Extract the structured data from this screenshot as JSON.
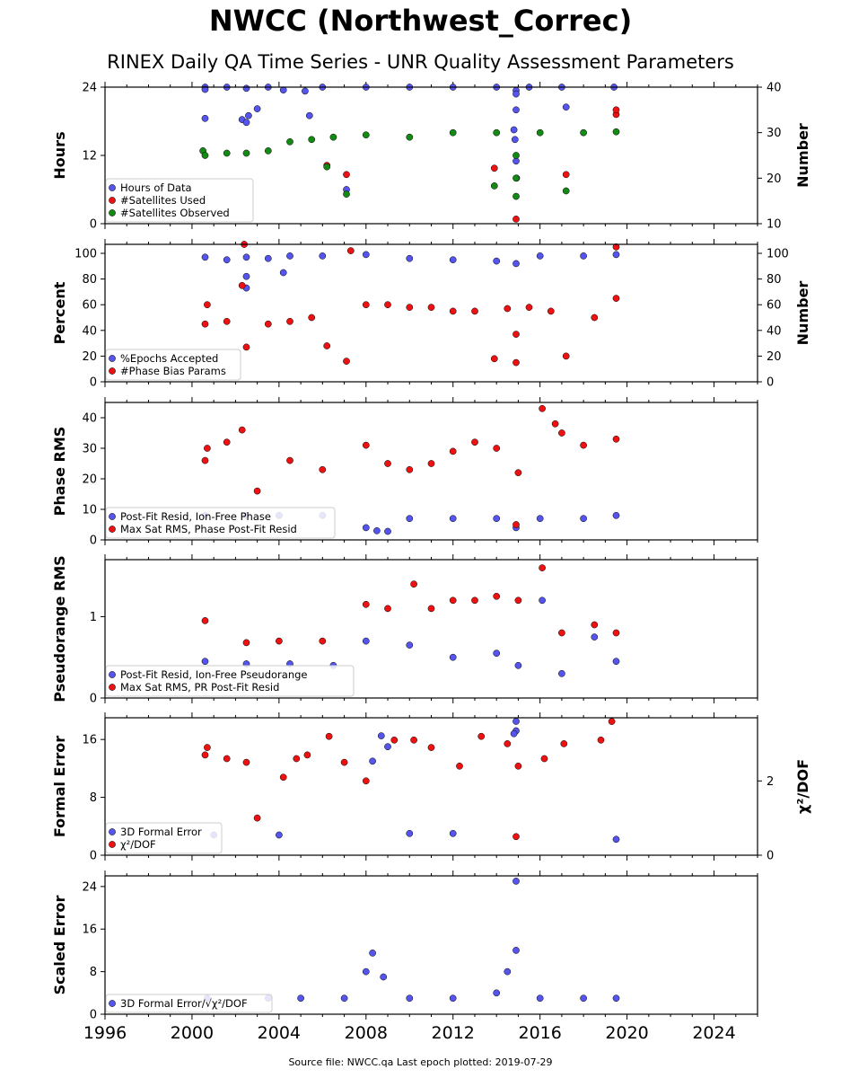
{
  "title": "NWCC (Northwest_Correc)",
  "subtitle": "RINEX Daily QA Time Series - UNR Quality Assessment Parameters",
  "source_note": "Source file: NWCC.qa Last epoch plotted: 2019-07-29",
  "colors": {
    "blue": "#5555ee",
    "red": "#ee1111",
    "green": "#138a13",
    "edge": "#000000"
  },
  "chart_data": [
    {
      "type": "scatter",
      "ylabel": "Hours",
      "ylabel_right": "Number",
      "yticks": [
        "0",
        "12",
        "24"
      ],
      "yticks_right": [
        "10",
        "20",
        "30",
        "40"
      ],
      "ylim": [
        0,
        24
      ],
      "ylim_right": [
        10,
        40
      ],
      "xlim": [
        1996,
        2026
      ],
      "legend_position": "lower-left",
      "series": [
        {
          "name": "Hours of Data",
          "color": "blue",
          "axis": "left",
          "data": [
            [
              2000.6,
              24
            ],
            [
              2000.6,
              23.6
            ],
            [
              2001.6,
              24
            ],
            [
              2002.5,
              23.8
            ],
            [
              2003.5,
              24
            ],
            [
              2004.2,
              23.5
            ],
            [
              2005.2,
              23.3
            ],
            [
              2006,
              24
            ],
            [
              2008,
              24
            ],
            [
              2010,
              24
            ],
            [
              2012,
              24
            ],
            [
              2014,
              24
            ],
            [
              2014.9,
              23.4
            ],
            [
              2014.9,
              22.8
            ],
            [
              2015.5,
              24
            ],
            [
              2017,
              24
            ],
            [
              2019.4,
              24
            ],
            [
              2000.6,
              18.5
            ],
            [
              2002.3,
              18.3
            ],
            [
              2002.5,
              17.8
            ],
            [
              2002.6,
              19
            ],
            [
              2003,
              20.2
            ],
            [
              2005.4,
              19
            ],
            [
              2007.1,
              6
            ],
            [
              2014.8,
              16.5
            ],
            [
              2014.85,
              14.8
            ],
            [
              2014.9,
              20
            ],
            [
              2014.9,
              11
            ],
            [
              2014.92,
              8
            ],
            [
              2017.2,
              20.5
            ]
          ]
        },
        {
          "name": "#Satellites Used",
          "color": "red",
          "axis": "right",
          "data": [
            [
              2006.2,
              22.8
            ],
            [
              2007.1,
              20.8
            ],
            [
              2013.9,
              22.2
            ],
            [
              2014.9,
              11
            ],
            [
              2017.2,
              20.8
            ],
            [
              2019.5,
              34
            ],
            [
              2019.5,
              35
            ]
          ]
        },
        {
          "name": "#Satellites Observed",
          "color": "green",
          "axis": "right",
          "data": [
            [
              2000.5,
              26
            ],
            [
              2000.6,
              25
            ],
            [
              2001.6,
              25.5
            ],
            [
              2002.5,
              25.5
            ],
            [
              2003.5,
              26
            ],
            [
              2004.5,
              28
            ],
            [
              2005.5,
              28.5
            ],
            [
              2006.5,
              29
            ],
            [
              2008,
              29.5
            ],
            [
              2010,
              29
            ],
            [
              2012,
              30
            ],
            [
              2014,
              30
            ],
            [
              2014.9,
              25
            ],
            [
              2014.9,
              20
            ],
            [
              2014.9,
              16
            ],
            [
              2016,
              30
            ],
            [
              2018,
              30
            ],
            [
              2019.5,
              30.2
            ],
            [
              2007.1,
              16.5
            ],
            [
              2013.9,
              18.3
            ],
            [
              2017.2,
              17.2
            ],
            [
              2006.2,
              22.5
            ]
          ]
        }
      ]
    },
    {
      "type": "scatter",
      "ylabel": "Percent",
      "ylabel_right": "Number",
      "yticks": [
        "0",
        "20",
        "40",
        "60",
        "80",
        "100"
      ],
      "yticks_right": [
        "0",
        "20",
        "40",
        "60",
        "80",
        "100"
      ],
      "ylim": [
        0,
        107
      ],
      "xlim": [
        1996,
        2026
      ],
      "legend_position": "lower-left",
      "series": [
        {
          "name": "%Epochs Accepted",
          "color": "blue",
          "axis": "left",
          "data": [
            [
              2000.6,
              97
            ],
            [
              2001.6,
              95
            ],
            [
              2002.5,
              97
            ],
            [
              2003.5,
              96
            ],
            [
              2004.5,
              98
            ],
            [
              2006,
              98
            ],
            [
              2008,
              99
            ],
            [
              2010,
              96
            ],
            [
              2012,
              95
            ],
            [
              2014,
              94
            ],
            [
              2014.9,
              92
            ],
            [
              2016,
              98
            ],
            [
              2018,
              98
            ],
            [
              2019.5,
              99
            ],
            [
              2002.5,
              82
            ],
            [
              2002.5,
              73
            ],
            [
              2004.2,
              85
            ]
          ]
        },
        {
          "name": "#Phase Bias Params",
          "color": "red",
          "axis": "left",
          "data": [
            [
              2000.6,
              45
            ],
            [
              2000.7,
              60
            ],
            [
              2001.6,
              47
            ],
            [
              2002.3,
              75
            ],
            [
              2002.4,
              107
            ],
            [
              2002.5,
              27
            ],
            [
              2003.5,
              45
            ],
            [
              2004.5,
              47
            ],
            [
              2005.5,
              50
            ],
            [
              2006.2,
              28
            ],
            [
              2007.1,
              16
            ],
            [
              2007.3,
              102
            ],
            [
              2008,
              60
            ],
            [
              2009,
              60
            ],
            [
              2010,
              58
            ],
            [
              2011,
              58
            ],
            [
              2012,
              55
            ],
            [
              2013,
              55
            ],
            [
              2013.9,
              18
            ],
            [
              2014.5,
              57
            ],
            [
              2014.9,
              15
            ],
            [
              2014.9,
              37
            ],
            [
              2015.5,
              58
            ],
            [
              2016.5,
              55
            ],
            [
              2017.2,
              20
            ],
            [
              2018.5,
              50
            ],
            [
              2019.5,
              105
            ],
            [
              2019.5,
              65
            ]
          ]
        }
      ]
    },
    {
      "type": "scatter",
      "ylabel": "Phase RMS",
      "yticks": [
        "0",
        "10",
        "20",
        "30",
        "40"
      ],
      "ylim": [
        0,
        45
      ],
      "xlim": [
        1996,
        2026
      ],
      "legend_position": "lower-left",
      "series": [
        {
          "name": "Post-Fit Resid, Ion-Free Phase",
          "color": "blue",
          "data": [
            [
              2000.6,
              8
            ],
            [
              2002.5,
              8
            ],
            [
              2004,
              8
            ],
            [
              2006,
              8
            ],
            [
              2008,
              4
            ],
            [
              2008.5,
              3
            ],
            [
              2009,
              2.8
            ],
            [
              2010,
              7
            ],
            [
              2012,
              7
            ],
            [
              2014,
              7
            ],
            [
              2014.9,
              4
            ],
            [
              2016,
              7
            ],
            [
              2018,
              7
            ],
            [
              2019.5,
              8
            ]
          ]
        },
        {
          "name": "Max Sat RMS, Phase Post-Fit Resid",
          "color": "red",
          "data": [
            [
              2000.6,
              26
            ],
            [
              2000.7,
              30
            ],
            [
              2001.6,
              32
            ],
            [
              2002.3,
              36
            ],
            [
              2003,
              16
            ],
            [
              2004.5,
              26
            ],
            [
              2006,
              23
            ],
            [
              2008,
              31
            ],
            [
              2009,
              25
            ],
            [
              2010,
              23
            ],
            [
              2011,
              25
            ],
            [
              2012,
              29
            ],
            [
              2013,
              32
            ],
            [
              2014,
              30
            ],
            [
              2015,
              22
            ],
            [
              2016.1,
              43
            ],
            [
              2016.7,
              38
            ],
            [
              2017,
              35
            ],
            [
              2018,
              31
            ],
            [
              2019.5,
              33
            ],
            [
              2014.9,
              5
            ]
          ]
        }
      ]
    },
    {
      "type": "scatter",
      "ylabel": "Pseudorange RMS",
      "yticks": [
        "0",
        "1"
      ],
      "ylim": [
        0,
        1.7
      ],
      "xlim": [
        1996,
        2026
      ],
      "legend_position": "lower-left",
      "series": [
        {
          "name": "Post-Fit Resid, Ion-Free Pseudorange",
          "color": "blue",
          "data": [
            [
              2000.6,
              0.45
            ],
            [
              2002.5,
              0.42
            ],
            [
              2004.5,
              0.42
            ],
            [
              2006.5,
              0.4
            ],
            [
              2008,
              0.7
            ],
            [
              2010,
              0.65
            ],
            [
              2012,
              0.5
            ],
            [
              2014,
              0.55
            ],
            [
              2015,
              0.4
            ],
            [
              2016.1,
              1.2
            ],
            [
              2017,
              0.3
            ],
            [
              2018.5,
              0.75
            ],
            [
              2019.5,
              0.45
            ]
          ]
        },
        {
          "name": "Max Sat RMS, PR Post-Fit Resid",
          "color": "red",
          "data": [
            [
              2000.6,
              0.95
            ],
            [
              2002.5,
              0.68
            ],
            [
              2004,
              0.7
            ],
            [
              2006,
              0.7
            ],
            [
              2008,
              1.15
            ],
            [
              2009,
              1.1
            ],
            [
              2010.2,
              1.4
            ],
            [
              2011,
              1.1
            ],
            [
              2012,
              1.2
            ],
            [
              2013,
              1.2
            ],
            [
              2014,
              1.25
            ],
            [
              2015,
              1.2
            ],
            [
              2016.1,
              1.6
            ],
            [
              2017,
              0.8
            ],
            [
              2018.5,
              0.9
            ],
            [
              2019.5,
              0.8
            ]
          ]
        }
      ]
    },
    {
      "type": "scatter",
      "ylabel": "Formal Error",
      "ylabel_right": "χ²/DOF",
      "yticks": [
        "0",
        "8",
        "16"
      ],
      "yticks_right": [
        "0",
        "2"
      ],
      "ylim": [
        0,
        19
      ],
      "ylim_right": [
        0,
        3.7
      ],
      "xlim": [
        1996,
        2026
      ],
      "legend_position": "lower-left",
      "series": [
        {
          "name": "3D Formal Error",
          "color": "blue",
          "axis": "left",
          "data": [
            [
              2001,
              2.8
            ],
            [
              2004,
              2.8
            ],
            [
              2008.3,
              13
            ],
            [
              2008.7,
              16.5
            ],
            [
              2009,
              15
            ],
            [
              2010,
              3
            ],
            [
              2012,
              3
            ],
            [
              2014.9,
              18.5
            ],
            [
              2014.9,
              17.2
            ],
            [
              2014.8,
              16.8
            ],
            [
              2019.5,
              2.2
            ]
          ]
        },
        {
          "name": "χ²/DOF",
          "color": "red",
          "axis": "right",
          "data": [
            [
              2000.6,
              2.7
            ],
            [
              2000.7,
              2.9
            ],
            [
              2001.6,
              2.6
            ],
            [
              2002.5,
              2.5
            ],
            [
              2003,
              1.0
            ],
            [
              2004.2,
              2.1
            ],
            [
              2004.8,
              2.6
            ],
            [
              2005.3,
              2.7
            ],
            [
              2006.3,
              3.2
            ],
            [
              2007,
              2.5
            ],
            [
              2008,
              2.0
            ],
            [
              2009.3,
              3.1
            ],
            [
              2010.2,
              3.1
            ],
            [
              2011,
              2.9
            ],
            [
              2012.3,
              2.4
            ],
            [
              2013.3,
              3.2
            ],
            [
              2014.5,
              3.0
            ],
            [
              2015,
              2.4
            ],
            [
              2016.2,
              2.6
            ],
            [
              2017.1,
              3.0
            ],
            [
              2018.8,
              3.1
            ],
            [
              2019.3,
              3.6
            ],
            [
              2014.9,
              0.5
            ]
          ]
        }
      ]
    },
    {
      "type": "scatter",
      "ylabel": "Scaled Error",
      "yticks": [
        "0",
        "8",
        "16",
        "24"
      ],
      "ylim": [
        0,
        26
      ],
      "xlim": [
        1996,
        2026
      ],
      "xticks": [
        "1996",
        "2000",
        "2004",
        "2008",
        "2012",
        "2016",
        "2020",
        "2024"
      ],
      "legend_position": "lower-left",
      "series": [
        {
          "name": "3D Formal Error/√χ²/DOF",
          "color": "blue",
          "data": [
            [
              2000.7,
              3
            ],
            [
              2003.5,
              3
            ],
            [
              2005,
              3
            ],
            [
              2007,
              3
            ],
            [
              2008,
              8
            ],
            [
              2008.3,
              11.5
            ],
            [
              2008.8,
              7
            ],
            [
              2010,
              3
            ],
            [
              2012,
              3
            ],
            [
              2014,
              4
            ],
            [
              2014.5,
              8
            ],
            [
              2014.9,
              12
            ],
            [
              2014.9,
              25
            ],
            [
              2016,
              3
            ],
            [
              2018,
              3
            ],
            [
              2019.5,
              3
            ]
          ]
        }
      ]
    }
  ]
}
